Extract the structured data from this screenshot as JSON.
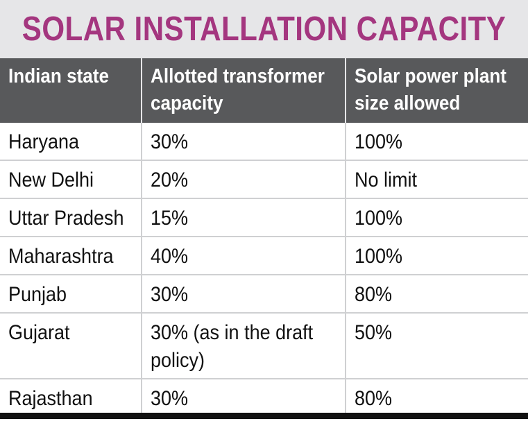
{
  "chart_data": {
    "type": "table",
    "title": "SOLAR INSTALLATION CAPACITY",
    "columns": [
      "Indian state",
      "Allotted transformer capacity",
      "Solar power plant size allowed"
    ],
    "header_lines": [
      [
        "Indian state"
      ],
      [
        "Allotted transformer",
        "capacity"
      ],
      [
        "Solar power plant",
        "size allowed"
      ]
    ],
    "rows": [
      {
        "state": "Haryana",
        "transformer": [
          "30%"
        ],
        "plant": "100%"
      },
      {
        "state": "New Delhi",
        "transformer": [
          "20%"
        ],
        "plant": "No limit"
      },
      {
        "state": "Uttar Pradesh",
        "transformer": [
          "15%"
        ],
        "plant": "100%"
      },
      {
        "state": "Maharashtra",
        "transformer": [
          "40%"
        ],
        "plant": "100%"
      },
      {
        "state": "Punjab",
        "transformer": [
          "30%"
        ],
        "plant": "80%"
      },
      {
        "state": "Gujarat",
        "transformer": [
          "30% (as in the draft",
          "policy)"
        ],
        "plant": "50%"
      },
      {
        "state": "Rajasthan",
        "transformer": [
          "30%"
        ],
        "plant": "80%"
      }
    ]
  },
  "colors": {
    "title": "#a4367f",
    "title_background": "#e6e6e8",
    "header_background": "#58595b",
    "header_text": "#ffffff",
    "grid_lines": "#cfd0d2",
    "bottom_rule": "#111111"
  }
}
